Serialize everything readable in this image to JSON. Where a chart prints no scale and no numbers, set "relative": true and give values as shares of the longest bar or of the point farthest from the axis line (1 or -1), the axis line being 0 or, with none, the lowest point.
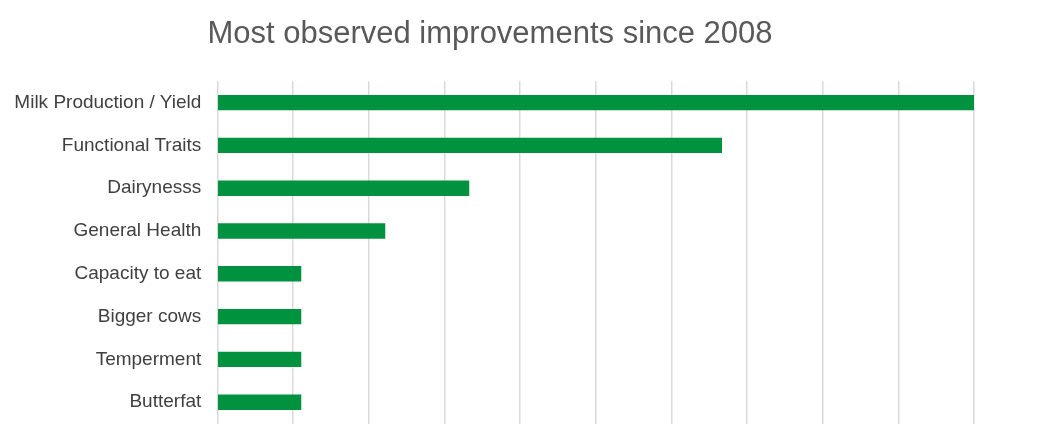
{
  "chart_data": {
    "type": "bar",
    "orientation": "horizontal",
    "relative": true,
    "title": "Most observed improvements since 2008",
    "categories": [
      "Milk Production / Yield",
      "Functional Traits",
      "Dairynesss",
      "General Health",
      "Capacity to eat",
      "Bigger cows",
      "Temperment",
      "Butterfat"
    ],
    "values": [
      1,
      0.667,
      0.333,
      0.222,
      0.111,
      0.111,
      0.111,
      0.111
    ],
    "color": "#00923f",
    "grid": "x",
    "legend": false
  }
}
